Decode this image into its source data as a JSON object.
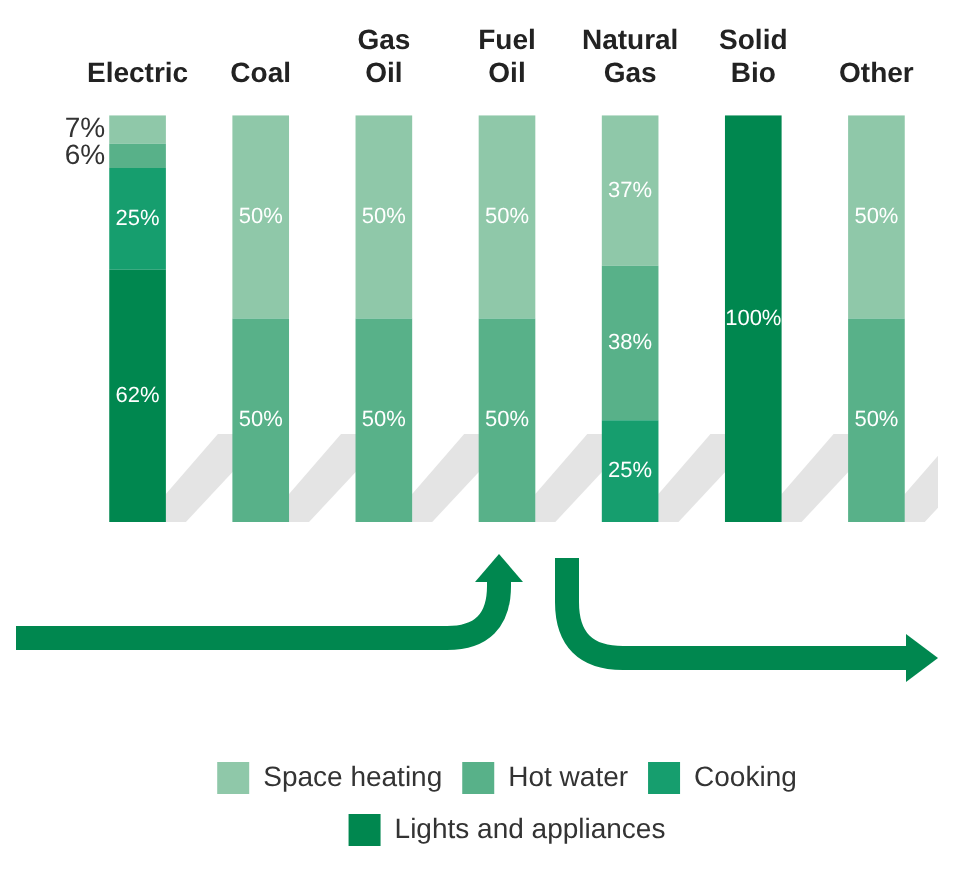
{
  "chart_data": {
    "type": "bar",
    "stacked": true,
    "categories": [
      "Electric",
      "Coal",
      "Gas Oil",
      "Fuel Oil",
      "Natural Gas",
      "Solid Bio",
      "Other"
    ],
    "series": [
      {
        "name": "Lights and appliances",
        "color": "#00874f",
        "values": [
          62,
          null,
          null,
          null,
          null,
          100,
          null
        ],
        "value_labels": [
          "62%",
          null,
          null,
          null,
          null,
          "100%",
          null
        ]
      },
      {
        "name": "Cooking",
        "color": "#169e6e",
        "values": [
          25,
          null,
          null,
          null,
          25,
          null,
          null
        ],
        "value_labels": [
          "25%",
          null,
          null,
          null,
          "25%",
          null,
          null
        ]
      },
      {
        "name": "Hot water",
        "color": "#58b189",
        "values": [
          6,
          50,
          50,
          50,
          38,
          null,
          50
        ],
        "value_labels": [
          "6%",
          "50%",
          "50%",
          "50%",
          "38%",
          null,
          "50%"
        ]
      },
      {
        "name": "Space heating",
        "color": "#8fc8a9",
        "values": [
          7,
          50,
          50,
          50,
          37,
          null,
          50
        ],
        "value_labels": [
          "7%",
          "50%",
          "50%",
          "50%",
          "37%",
          null,
          "50%"
        ]
      }
    ],
    "legend": "bottom"
  }
}
